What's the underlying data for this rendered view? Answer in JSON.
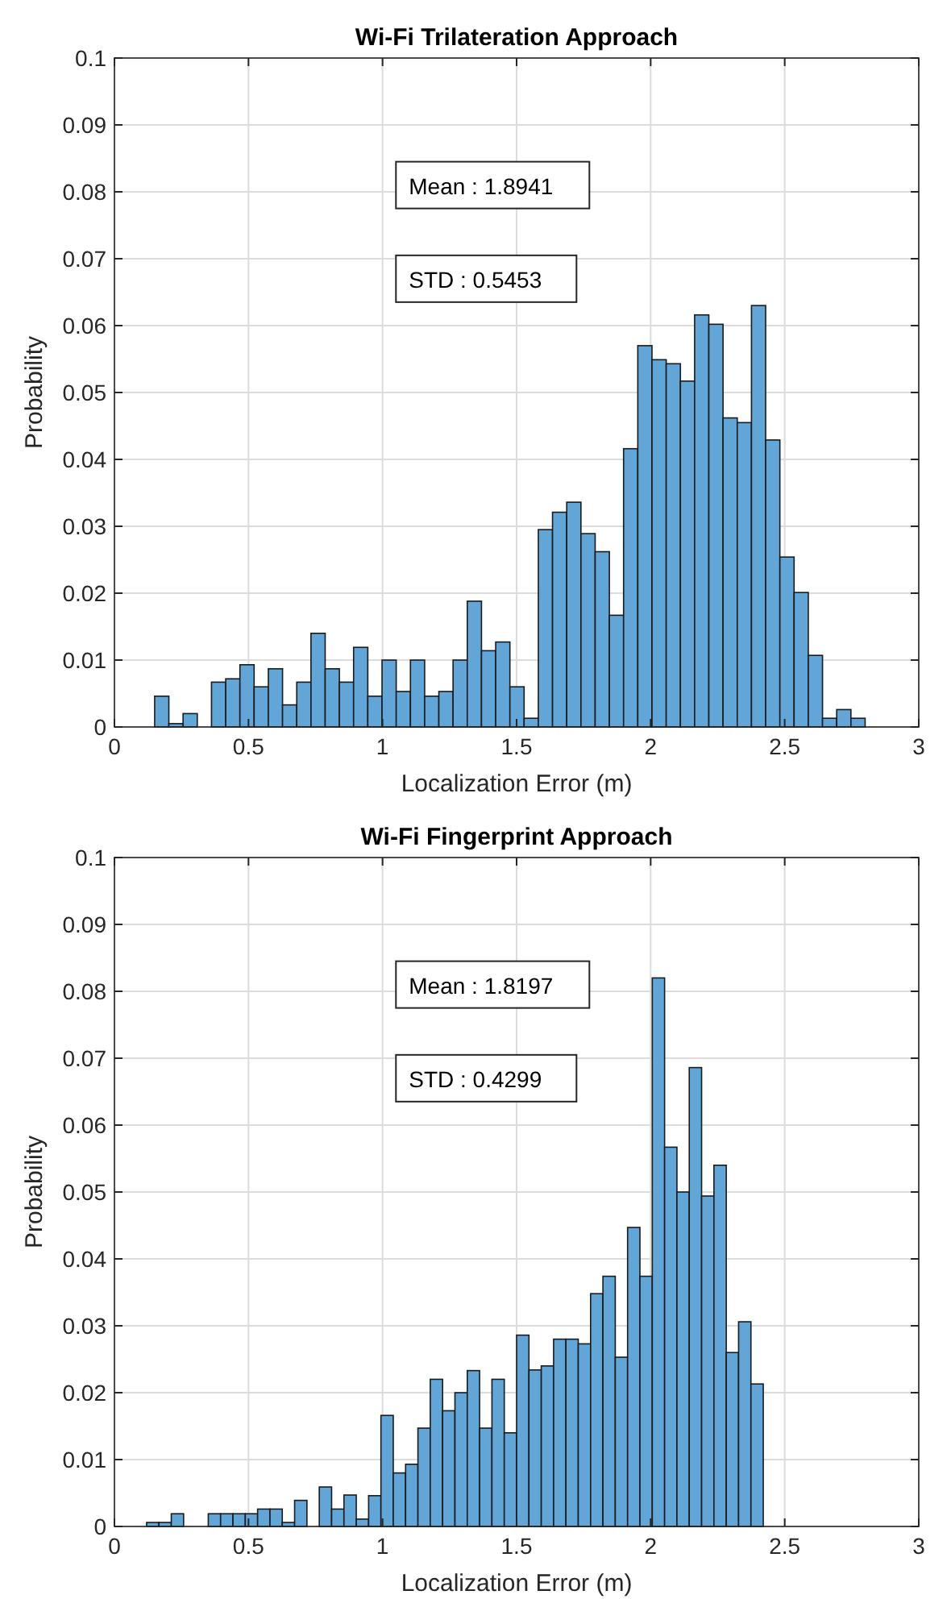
{
  "chart_data": [
    {
      "type": "histogram",
      "title": "Wi-Fi Trilateration Approach",
      "xlabel": "Localization Error (m)",
      "ylabel": "Probability",
      "color": "#62a6d8",
      "bins": [
        0.15,
        0.203,
        0.256,
        0.309,
        0.362,
        0.415,
        0.468,
        0.521,
        0.574,
        0.627,
        0.68,
        0.733,
        0.786,
        0.839,
        0.892,
        0.945,
        0.998,
        1.051,
        1.104,
        1.157,
        1.21,
        1.263,
        1.316,
        1.369,
        1.422,
        1.475,
        1.528,
        1.581,
        1.634,
        1.687,
        1.74,
        1.793,
        1.846,
        1.899,
        1.952,
        2.005,
        2.058,
        2.111,
        2.164,
        2.217,
        2.27,
        2.323,
        2.376,
        2.429,
        2.482,
        2.535,
        2.588,
        2.641,
        2.694,
        2.747,
        2.8
      ],
      "values": [
        0.0046,
        0.0005,
        0.002,
        0,
        0.0067,
        0.0072,
        0.0093,
        0.006,
        0.0087,
        0.0033,
        0.0067,
        0.014,
        0.0087,
        0.0067,
        0.0119,
        0.0046,
        0.01,
        0.0053,
        0.01,
        0.0046,
        0.0053,
        0.01,
        0.0188,
        0.0114,
        0.0127,
        0.006,
        0.0013,
        0.0295,
        0.0321,
        0.0336,
        0.0289,
        0.0262,
        0.0167,
        0.0416,
        0.057,
        0.0549,
        0.0543,
        0.0517,
        0.0616,
        0.0602,
        0.0462,
        0.0455,
        0.063,
        0.0429,
        0.0254,
        0.0201,
        0.0107,
        0.0013,
        0.0026,
        0.0013
      ],
      "xlim": [
        0,
        3
      ],
      "xticks": [
        0,
        0.5,
        1,
        1.5,
        2,
        2.5,
        3
      ],
      "ylim": [
        0,
        0.1
      ],
      "yticks": [
        0,
        0.01,
        0.02,
        0.03,
        0.04,
        0.05,
        0.06,
        0.07,
        0.08,
        0.09,
        0.1
      ],
      "grid": true,
      "annotations": [
        "Mean : 1.8941",
        "STD : 0.5453"
      ]
    },
    {
      "type": "histogram",
      "title": "Wi-Fi Fingerprint Approach",
      "xlabel": "Localization Error (m)",
      "ylabel": "Probability",
      "color": "#62a6d8",
      "bins": [
        0.12,
        0.166,
        0.212,
        0.258,
        0.304,
        0.35,
        0.396,
        0.442,
        0.488,
        0.534,
        0.58,
        0.626,
        0.672,
        0.718,
        0.764,
        0.81,
        0.856,
        0.902,
        0.948,
        0.994,
        1.04,
        1.086,
        1.132,
        1.178,
        1.224,
        1.27,
        1.316,
        1.362,
        1.408,
        1.454,
        1.5,
        1.546,
        1.592,
        1.638,
        1.684,
        1.73,
        1.776,
        1.822,
        1.868,
        1.914,
        1.96,
        2.006,
        2.052,
        2.098,
        2.144,
        2.19,
        2.236,
        2.282,
        2.328,
        2.374,
        2.42
      ],
      "values": [
        0.0006,
        0.0006,
        0.0019,
        0,
        0,
        0.0019,
        0.0019,
        0.0019,
        0.0019,
        0.0026,
        0.0026,
        0.0006,
        0.0039,
        0,
        0.0059,
        0.0026,
        0.0047,
        0.0011,
        0.0046,
        0.0166,
        0.008,
        0.0093,
        0.0147,
        0.022,
        0.0173,
        0.02,
        0.0233,
        0.0147,
        0.022,
        0.014,
        0.0286,
        0.0234,
        0.024,
        0.028,
        0.028,
        0.0273,
        0.0348,
        0.0374,
        0.0253,
        0.0447,
        0.0374,
        0.082,
        0.0567,
        0.05,
        0.0686,
        0.0494,
        0.054,
        0.026,
        0.0306,
        0.0213
      ],
      "xlim": [
        0,
        3
      ],
      "xticks": [
        0,
        0.5,
        1,
        1.5,
        2,
        2.5,
        3
      ],
      "ylim": [
        0,
        0.1
      ],
      "yticks": [
        0,
        0.01,
        0.02,
        0.03,
        0.04,
        0.05,
        0.06,
        0.07,
        0.08,
        0.09,
        0.1
      ],
      "grid": true,
      "annotations": [
        "Mean : 1.8197",
        "STD : 0.4299"
      ]
    }
  ]
}
